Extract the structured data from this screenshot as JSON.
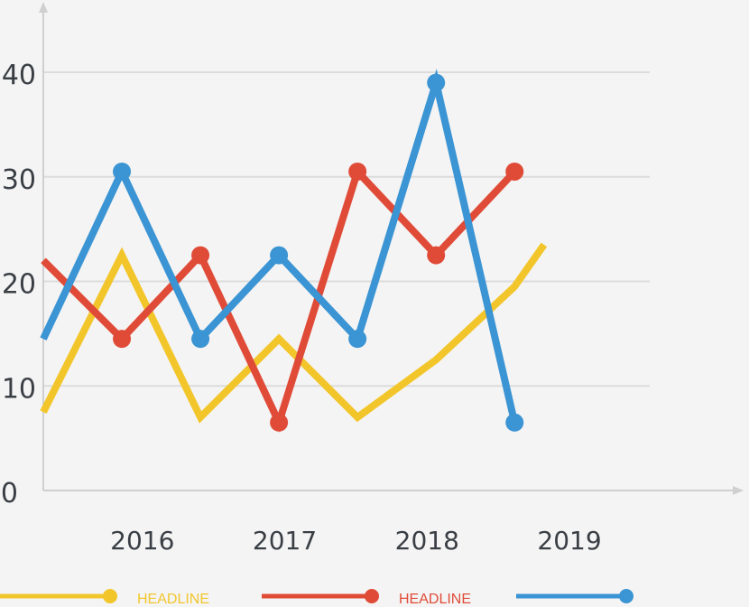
{
  "chart_data": {
    "type": "line",
    "title": "",
    "xlabel": "",
    "ylabel": "",
    "ylim": [
      0,
      45
    ],
    "xlim": [
      0,
      12.35
    ],
    "y_ticks": [
      "0",
      "10",
      "20",
      "30",
      "40"
    ],
    "x_tick_labels": [
      {
        "label": "2016",
        "x": 1.65
      },
      {
        "label": "2017",
        "x": 4.55
      },
      {
        "label": "2018",
        "x": 7.45
      },
      {
        "label": "2019",
        "x": 10.35
      }
    ],
    "grid": true,
    "series": [
      {
        "name": "HEADLINE",
        "color": "#f2c62b",
        "markers": false,
        "x": [
          0,
          1.6,
          3.2,
          4.8,
          6.4,
          8.0,
          9.6,
          10.2
        ],
        "y": [
          7.5,
          22.5,
          7,
          14.5,
          7,
          12.5,
          19.5,
          23.5
        ]
      },
      {
        "name": "HEADLINE",
        "color": "#e04b38",
        "markers": true,
        "x": [
          0,
          1.6,
          3.2,
          4.8,
          6.4,
          8.0,
          9.6
        ],
        "y": [
          22,
          14.5,
          22.5,
          6.5,
          30.5,
          22.5,
          30.5
        ]
      },
      {
        "name": "",
        "color": "#3b94d3",
        "markers": true,
        "x": [
          0,
          1.6,
          3.2,
          4.8,
          6.4,
          8.0,
          9.6
        ],
        "y": [
          14.5,
          30.5,
          14.5,
          22.5,
          14.5,
          39,
          6.5
        ]
      }
    ],
    "legend_placement": "bottom"
  }
}
